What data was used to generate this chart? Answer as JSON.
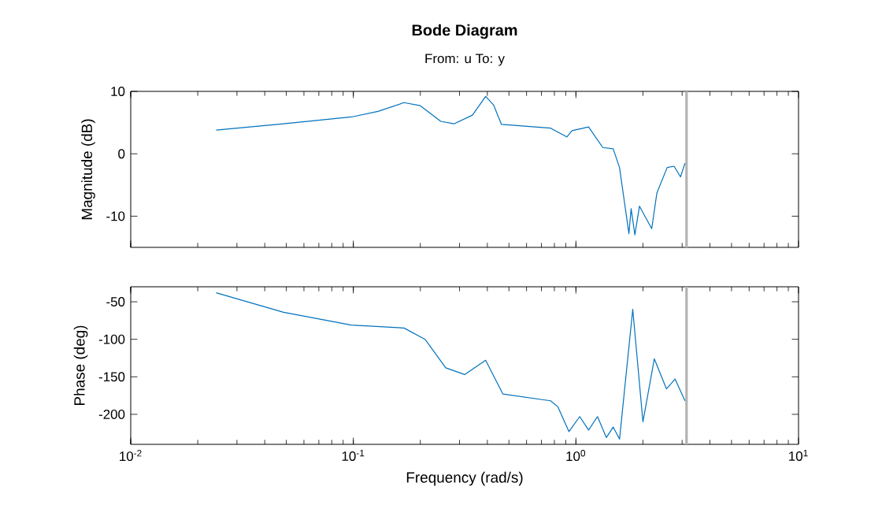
{
  "chart_data": [
    {
      "type": "line",
      "title": "Bode Diagram",
      "subtitle": "From: u  To: y",
      "ylabel": "Magnitude (dB)",
      "log": "x",
      "xlim": [
        0.01,
        10
      ],
      "ylim": [
        -15,
        10
      ],
      "yticks": [
        -10,
        0,
        10
      ],
      "tick_labels": "y",
      "ref_lines": [
        {
          "axis": "x",
          "value": 3.14,
          "color": "#b3b3b3"
        }
      ],
      "series": [
        {
          "color": "#0072bd",
          "x": [
            0.0242,
            0.0486,
            0.098,
            0.129,
            0.169,
            0.2,
            0.247,
            0.283,
            0.343,
            0.393,
            0.427,
            0.463,
            0.77,
            0.91,
            0.96,
            1.14,
            1.32,
            1.47,
            1.57,
            1.73,
            1.77,
            1.84,
            1.93,
            2.19,
            2.31,
            2.57,
            2.76,
            2.95,
            3.09
          ],
          "values": [
            3.8,
            4.8,
            5.9,
            6.8,
            8.2,
            7.7,
            5.2,
            4.8,
            6.2,
            9.2,
            7.8,
            4.7,
            4.1,
            2.7,
            3.7,
            4.3,
            1.0,
            0.8,
            -2.2,
            -12.8,
            -8.8,
            -13,
            -8.4,
            -12,
            -6.3,
            -2.2,
            -2.0,
            -3.7,
            -1.5
          ]
        }
      ]
    },
    {
      "type": "line",
      "xlabel": "Frequency (rad/s)",
      "ylabel": "Phase (deg)",
      "log": "x",
      "xlim": [
        0.01,
        10
      ],
      "ylim": [
        -240,
        -30
      ],
      "yticks": [
        -200,
        -150,
        -100,
        -50
      ],
      "xticks": [
        {
          "value": 0.01,
          "label": "10$^{-2}$"
        },
        {
          "value": 0.1,
          "label": "10$^{-1}$"
        },
        {
          "value": 1,
          "label": "10$^{0}$"
        },
        {
          "value": 10,
          "label": "10$^{1}$"
        }
      ],
      "ref_lines": [
        {
          "axis": "x",
          "value": 3.14,
          "color": "#b3b3b3"
        }
      ],
      "series": [
        {
          "color": "#0072bd",
          "x": [
            0.0242,
            0.0486,
            0.098,
            0.169,
            0.21,
            0.26,
            0.316,
            0.393,
            0.47,
            0.77,
            0.83,
            0.93,
            1.04,
            1.14,
            1.25,
            1.37,
            1.47,
            1.57,
            1.8,
            2.0,
            2.25,
            2.55,
            2.79,
            3.09
          ],
          "values": [
            -38,
            -64,
            -81,
            -85,
            -100,
            -138,
            -147,
            -128,
            -173,
            -182,
            -190,
            -223,
            -203,
            -221,
            -203,
            -231,
            -217,
            -233,
            -60,
            -210,
            -126,
            -166,
            -153,
            -182
          ]
        }
      ]
    }
  ]
}
